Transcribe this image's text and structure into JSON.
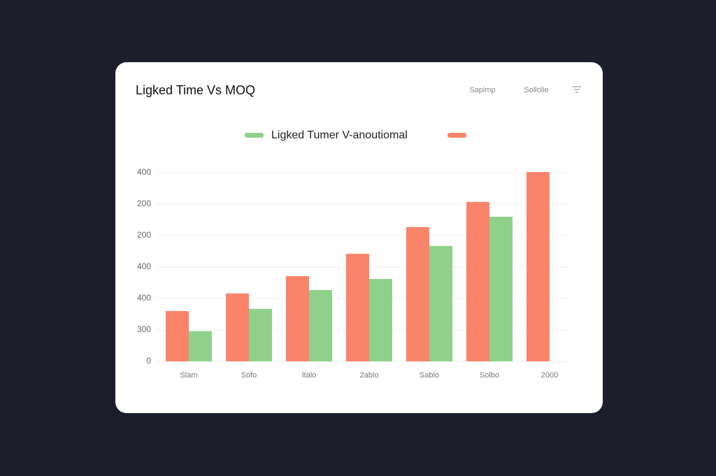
{
  "chart_data": {
    "type": "bar",
    "title": "Ligked Time Vs MOQ",
    "toolbar": [
      "Sapimp",
      "Sollolie"
    ],
    "categories": [
      "Slam",
      "Sofo",
      "Italo",
      "2ablo",
      "Sablo",
      "Solbo",
      "2000"
    ],
    "series": [
      {
        "name": "Ligked Tumer V-anoutiomal",
        "color": "#8fd18a",
        "values": [
          96,
          167,
          227,
          262,
          367,
          460,
          null
        ]
      },
      {
        "color": "#f98469",
        "values": [
          160,
          216,
          271,
          342,
          427,
          507,
          602
        ]
      }
    ],
    "ylim": [
      0,
      610
    ],
    "yticks": [
      0,
      {
        "value": 100,
        "label": "300"
      },
      {
        "value": 200,
        "label": "400"
      },
      {
        "value": 300,
        "label": "400"
      },
      {
        "value": 400,
        "label": "200"
      },
      {
        "value": 500,
        "label": "200"
      },
      {
        "value": 600,
        "label": "400"
      }
    ],
    "grid": true
  }
}
